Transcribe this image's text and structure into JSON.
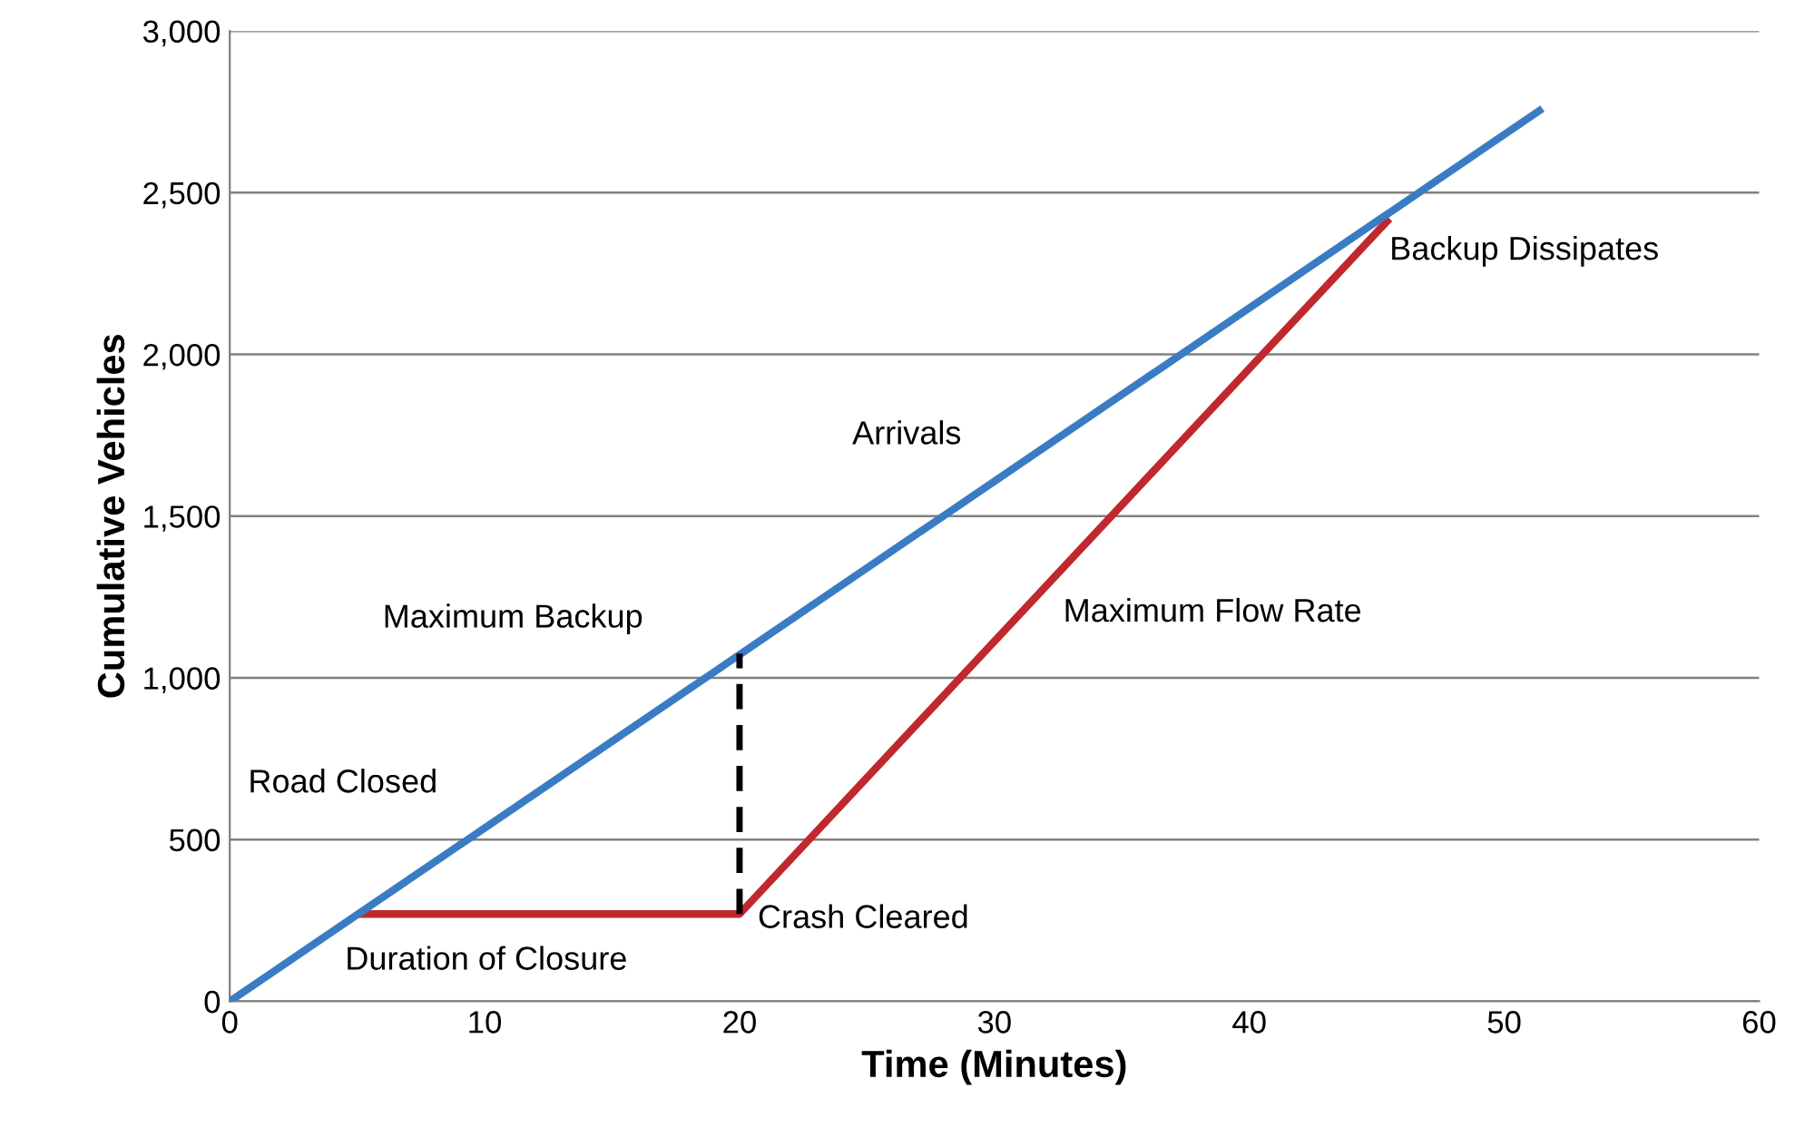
{
  "chart_data": {
    "type": "line",
    "xlabel": "Time (Minutes)",
    "ylabel": "Cumulative Vehicles",
    "xlim": [
      0,
      60
    ],
    "xticks": [
      0,
      10,
      20,
      30,
      40,
      50,
      60
    ],
    "ylim": [
      0,
      3000
    ],
    "yticks": [
      {
        "value": 0,
        "label": "0"
      },
      {
        "value": 500,
        "label": "500"
      },
      {
        "value": 1000,
        "label": "1,000"
      },
      {
        "value": 1500,
        "label": "1,500"
      },
      {
        "value": 2000,
        "label": "2,000"
      },
      {
        "value": 2500,
        "label": "2,500"
      },
      {
        "value": 3000,
        "label": "3,000"
      }
    ],
    "grid": "y",
    "legend": false,
    "marker": "none",
    "series": [
      {
        "color": "#c0282d",
        "x": [
          5,
          20,
          45.5
        ],
        "values": [
          270,
          270,
          2420
        ]
      },
      {
        "color": "#3a7cc4",
        "x": [
          0,
          51.5
        ],
        "values": [
          0,
          2760
        ]
      },
      {
        "color": "#000000",
        "x": [
          20,
          20
        ],
        "values": [
          270,
          1075
        ],
        "line_style": "dashed"
      }
    ],
    "annotations": [
      "Road Closed",
      {
        "text": "Duration of Closure",
        "x": 12.5,
        "y": 270
      },
      "Maximum Backup",
      {
        "text": "Crash Cleared",
        "x": 20,
        "y": 270
      },
      "Arrivals",
      "Maximum Flow Rate",
      {
        "text": "Backup Dissipates",
        "x": 45.5,
        "y": 2420
      }
    ]
  }
}
